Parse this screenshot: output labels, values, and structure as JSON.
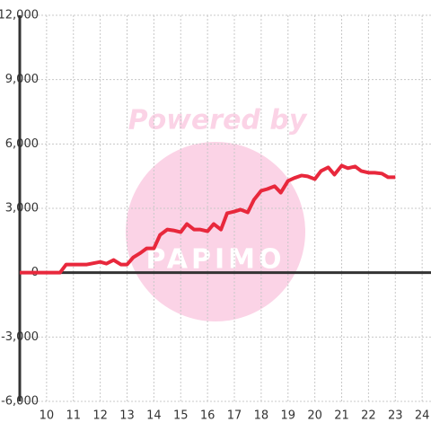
{
  "chart_data": {
    "type": "line",
    "watermark": "Powered by",
    "watermark_logo": "PAPIMO",
    "series": [
      {
        "color": "#e8283c",
        "x": [
          9,
          10.5,
          10.73,
          11.5,
          12,
          12.23,
          12.5,
          12.77,
          13,
          13.23,
          13.5,
          13.73,
          14,
          14.23,
          14.5,
          14.73,
          15,
          15.23,
          15.5,
          15.73,
          16,
          16.23,
          16.5,
          16.73,
          17,
          17.23,
          17.5,
          17.73,
          18,
          18.23,
          18.5,
          18.73,
          19,
          19.23,
          19.5,
          19.73,
          20,
          20.23,
          20.5,
          20.73,
          21,
          21.23,
          21.5,
          21.73,
          22,
          22.23,
          22.5,
          22.73,
          23
        ],
        "values": [
          0,
          0,
          380,
          380,
          500,
          420,
          590,
          380,
          380,
          710,
          920,
          1130,
          1130,
          1760,
          2010,
          1970,
          1890,
          2270,
          2010,
          2010,
          1930,
          2270,
          2010,
          2770,
          2850,
          2940,
          2810,
          3400,
          3820,
          3900,
          4030,
          3730,
          4280,
          4410,
          4530,
          4490,
          4360,
          4740,
          4910,
          4570,
          4990,
          4870,
          4950,
          4740,
          4660,
          4660,
          4620,
          4450,
          4450
        ]
      }
    ],
    "xlim": [
      9,
      24.33
    ],
    "xticks": [
      10,
      11,
      12,
      13,
      14,
      15,
      16,
      17,
      18,
      19,
      20,
      21,
      22,
      23,
      24
    ],
    "ylim": [
      -6000,
      12000
    ],
    "yticks": [
      {
        "value": -6000,
        "label": "-6,000"
      },
      {
        "value": -3000,
        "label": "-3,000"
      },
      0,
      {
        "value": 3000,
        "label": "3,000"
      },
      {
        "value": 6000,
        "label": "6,000"
      },
      {
        "value": 9000,
        "label": "9,000"
      },
      {
        "value": 12000,
        "label": "12,000"
      }
    ],
    "grid": true
  }
}
